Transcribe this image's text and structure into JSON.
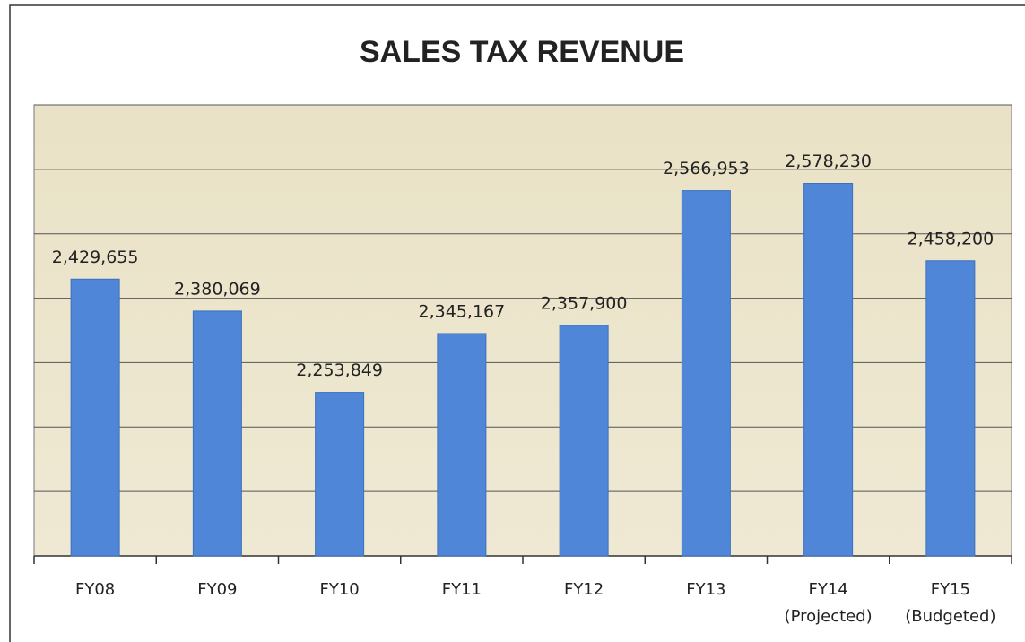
{
  "chart_data": {
    "type": "bar",
    "title": "SALES TAX REVENUE",
    "categories": [
      "FY08",
      "FY09",
      "FY10",
      "FY11",
      "FY12",
      "FY13",
      "FY14\n(Projected)",
      "FY15\n(Budgeted)"
    ],
    "values": [
      2429655,
      2380069,
      2253849,
      2345167,
      2357900,
      2566953,
      2578230,
      2458200
    ],
    "value_labels": [
      "2,429,655",
      "2,380,069",
      "2,253,849",
      "2,345,167",
      "2,357,900",
      "2,566,953",
      "2,578,230",
      "2,458,200"
    ],
    "color": "#4f86d8",
    "ylim": [
      2000000,
      2700000
    ],
    "yticks": [
      2000000,
      2100000,
      2200000,
      2300000,
      2400000,
      2500000,
      2600000,
      2700000
    ],
    "ytick_labels": false,
    "grid": true
  }
}
